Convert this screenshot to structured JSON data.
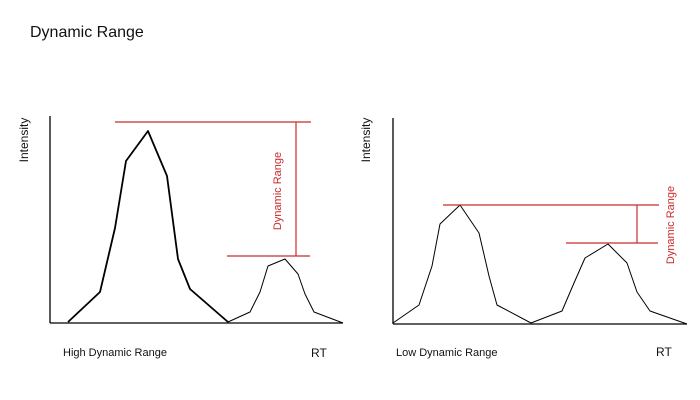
{
  "title": "Dynamic Range",
  "colors": {
    "curve": "#000000",
    "range": "#cc2b2b"
  },
  "panels": [
    {
      "caption": "High Dynamic Range",
      "ylabel": "Intensity",
      "xlabel": "RT",
      "range_label": "Dynamic Range"
    },
    {
      "caption": "Low Dynamic Range",
      "ylabel": "Intensity",
      "xlabel": "RT",
      "range_label": "Dynamic Range"
    }
  ]
}
